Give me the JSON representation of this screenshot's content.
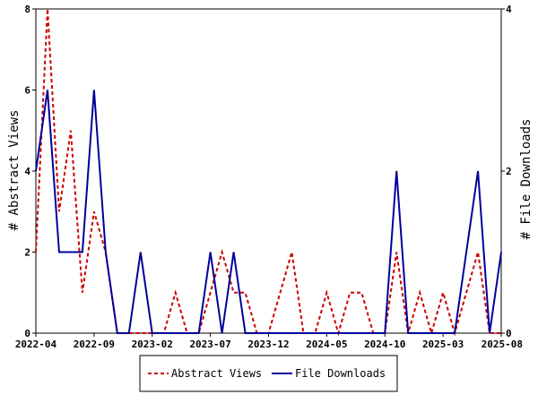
{
  "chart_data": {
    "type": "line",
    "x_tick_labels": [
      "2022-04",
      "2022-09",
      "2023-02",
      "2023-07",
      "2023-12",
      "2024-05",
      "2024-10",
      "2025-03",
      "2025-08"
    ],
    "x_range": [
      0,
      40
    ],
    "x": [
      0,
      1,
      2,
      3,
      4,
      5,
      6,
      7,
      8,
      9,
      10,
      11,
      12,
      13,
      14,
      15,
      16,
      17,
      18,
      19,
      20,
      21,
      22,
      23,
      24,
      25,
      26,
      27,
      28,
      29,
      30,
      31,
      32,
      33,
      34,
      35,
      36,
      37,
      38,
      39,
      40
    ],
    "left_axis": {
      "label": "# Abstract Views",
      "range": [
        0,
        8
      ],
      "ticks": [
        "0",
        "2",
        "4",
        "6",
        "8"
      ]
    },
    "right_axis": {
      "label": "# File Downloads",
      "range": [
        0,
        4
      ],
      "ticks": [
        "0",
        "2",
        "4"
      ]
    },
    "series": [
      {
        "name": "Abstract Views",
        "axis": "left",
        "color": "#cc0000",
        "dash": true,
        "values": [
          2,
          8,
          3,
          5,
          1,
          3,
          2,
          0,
          0,
          0,
          0,
          0,
          1,
          0,
          0,
          1,
          2,
          1,
          1,
          0,
          0,
          1,
          2,
          0,
          0,
          1,
          0,
          1,
          1,
          0,
          0,
          2,
          0,
          1,
          0,
          1,
          0,
          1,
          2,
          0,
          0
        ]
      },
      {
        "name": "File Downloads",
        "axis": "right",
        "color": "#000099",
        "dash": false,
        "values": [
          2,
          3,
          1,
          1,
          1,
          3,
          1,
          0,
          0,
          1,
          0,
          0,
          0,
          0,
          0,
          1,
          0,
          1,
          0,
          0,
          0,
          0,
          0,
          0,
          0,
          0,
          0,
          0,
          0,
          0,
          0,
          2,
          0,
          0,
          0,
          0,
          0,
          1,
          2,
          0,
          1
        ]
      }
    ],
    "grid": false,
    "legend_position": "bottom-center"
  }
}
